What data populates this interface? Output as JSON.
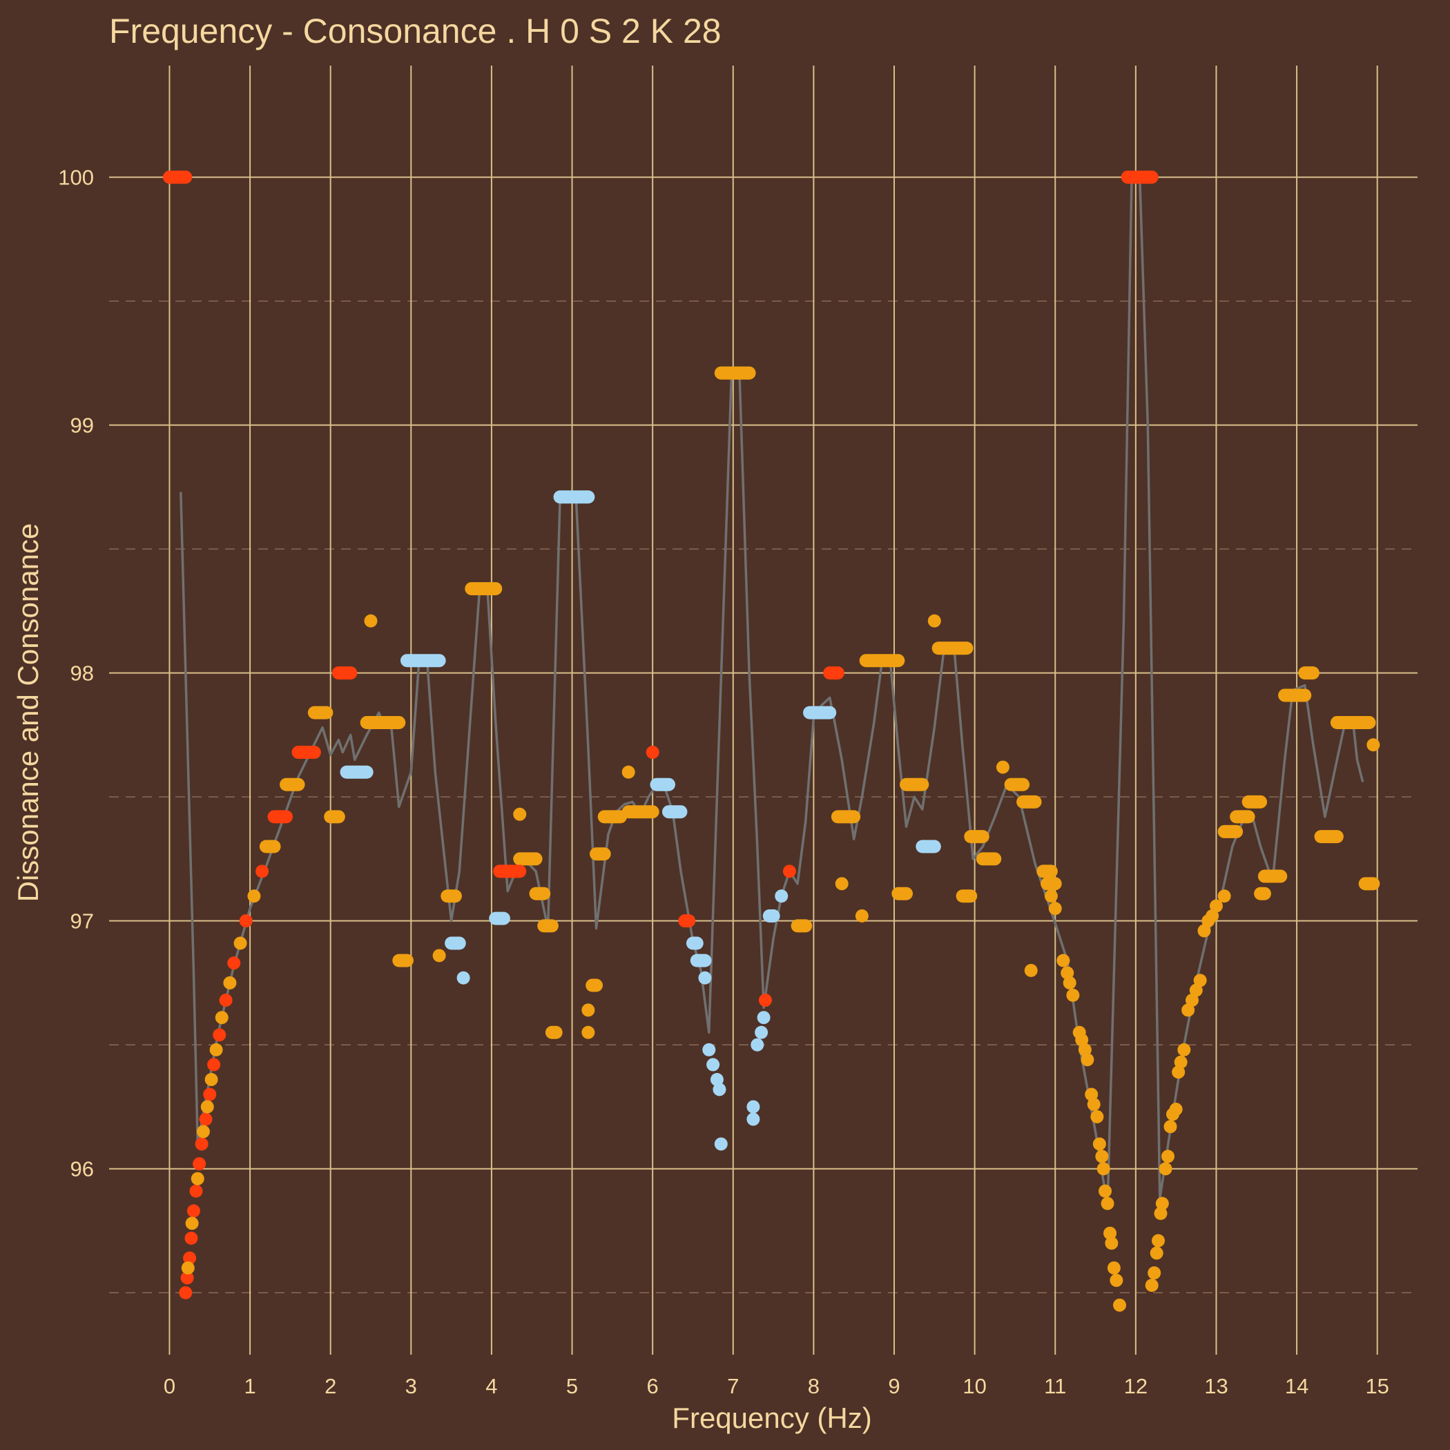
{
  "chart_data": {
    "type": "scatter",
    "title": "Frequency - Consonance . H 0 S 2 K 28",
    "xlabel": "Frequency (Hz)",
    "ylabel": "Dissonance and Consonance",
    "xlim": [
      -0.75,
      15.5
    ],
    "ylim": [
      95.25,
      100.45
    ],
    "x_ticks": [
      0,
      1,
      2,
      3,
      4,
      5,
      6,
      7,
      8,
      9,
      10,
      11,
      12,
      13,
      14,
      15
    ],
    "x_tick_labels": [
      "0",
      "1",
      "2",
      "3",
      "4",
      "5",
      "6",
      "7",
      "8",
      "9",
      "10",
      "11",
      "12",
      "13",
      "14",
      "15"
    ],
    "y_ticks": [
      96,
      97,
      98,
      99,
      100
    ],
    "y_tick_labels": [
      "96",
      "97",
      "98",
      "99",
      "100"
    ],
    "y_minor_ticks": [
      95.5,
      96.5,
      97.5,
      98.5,
      99.5
    ],
    "grid": true,
    "colors": {
      "red": "#ff3d0d",
      "orange": "#f0a011",
      "blue": "#a5d7f5",
      "trend": "#707070",
      "background": "#4e3227",
      "text": "#f5d8a0"
    },
    "segments": [
      {
        "x1": 0,
        "x2": 0.2,
        "y": 100,
        "color": "red"
      },
      {
        "x1": 11.9,
        "x2": 12.2,
        "y": 100,
        "color": "red"
      },
      {
        "x1": 6.85,
        "x2": 7.2,
        "y": 99.21,
        "color": "orange"
      },
      {
        "x1": 4.85,
        "x2": 5.2,
        "y": 98.71,
        "color": "blue"
      },
      {
        "x1": 3.75,
        "x2": 4.05,
        "y": 98.34,
        "color": "orange"
      },
      {
        "x1": 2.95,
        "x2": 3.35,
        "y": 98.05,
        "color": "blue"
      },
      {
        "x1": 8.65,
        "x2": 9.05,
        "y": 98.05,
        "color": "orange"
      },
      {
        "x1": 9.55,
        "x2": 9.9,
        "y": 98.1,
        "color": "orange"
      },
      {
        "x1": 2.1,
        "x2": 2.25,
        "y": 98,
        "color": "red"
      },
      {
        "x1": 8.2,
        "x2": 8.3,
        "y": 98,
        "color": "red"
      },
      {
        "x1": 14.1,
        "x2": 14.2,
        "y": 98,
        "color": "orange"
      },
      {
        "x1": 13.85,
        "x2": 14.1,
        "y": 97.91,
        "color": "orange"
      },
      {
        "x1": 1.8,
        "x2": 1.95,
        "y": 97.84,
        "color": "orange"
      },
      {
        "x1": 7.95,
        "x2": 8.2,
        "y": 97.84,
        "color": "blue"
      },
      {
        "x1": 2.45,
        "x2": 2.85,
        "y": 97.8,
        "color": "orange"
      },
      {
        "x1": 14.5,
        "x2": 14.9,
        "y": 97.8,
        "color": "orange"
      },
      {
        "x1": 1.6,
        "x2": 1.8,
        "y": 97.68,
        "color": "red"
      },
      {
        "x1": 2.2,
        "x2": 2.45,
        "y": 97.6,
        "color": "blue"
      },
      {
        "x1": 1.45,
        "x2": 1.6,
        "y": 97.55,
        "color": "orange"
      },
      {
        "x1": 6.05,
        "x2": 6.2,
        "y": 97.55,
        "color": "blue"
      },
      {
        "x1": 9.15,
        "x2": 9.35,
        "y": 97.55,
        "color": "orange"
      },
      {
        "x1": 10.45,
        "x2": 10.6,
        "y": 97.55,
        "color": "orange"
      },
      {
        "x1": 10.6,
        "x2": 10.75,
        "y": 97.48,
        "color": "orange"
      },
      {
        "x1": 13.4,
        "x2": 13.55,
        "y": 97.48,
        "color": "orange"
      },
      {
        "x1": 5.7,
        "x2": 6.0,
        "y": 97.44,
        "color": "orange"
      },
      {
        "x1": 6.2,
        "x2": 6.35,
        "y": 97.44,
        "color": "blue"
      },
      {
        "x1": 1.3,
        "x2": 1.45,
        "y": 97.42,
        "color": "red"
      },
      {
        "x1": 2.0,
        "x2": 2.1,
        "y": 97.42,
        "color": "orange"
      },
      {
        "x1": 5.4,
        "x2": 5.6,
        "y": 97.42,
        "color": "orange"
      },
      {
        "x1": 8.3,
        "x2": 8.5,
        "y": 97.42,
        "color": "orange"
      },
      {
        "x1": 13.25,
        "x2": 13.4,
        "y": 97.42,
        "color": "orange"
      },
      {
        "x1": 13.1,
        "x2": 13.25,
        "y": 97.36,
        "color": "orange"
      },
      {
        "x1": 9.95,
        "x2": 10.1,
        "y": 97.34,
        "color": "orange"
      },
      {
        "x1": 14.3,
        "x2": 14.5,
        "y": 97.34,
        "color": "orange"
      },
      {
        "x1": 1.2,
        "x2": 1.3,
        "y": 97.3,
        "color": "orange"
      },
      {
        "x1": 9.35,
        "x2": 9.5,
        "y": 97.3,
        "color": "blue"
      },
      {
        "x1": 5.3,
        "x2": 5.4,
        "y": 97.27,
        "color": "orange"
      },
      {
        "x1": 4.35,
        "x2": 4.55,
        "y": 97.25,
        "color": "orange"
      },
      {
        "x1": 10.1,
        "x2": 10.25,
        "y": 97.25,
        "color": "orange"
      },
      {
        "x1": 4.1,
        "x2": 4.35,
        "y": 97.2,
        "color": "red"
      },
      {
        "x1": 10.85,
        "x2": 10.95,
        "y": 97.2,
        "color": "orange"
      },
      {
        "x1": 13.6,
        "x2": 13.8,
        "y": 97.18,
        "color": "orange"
      },
      {
        "x1": 10.9,
        "x2": 11.0,
        "y": 97.15,
        "color": "orange"
      },
      {
        "x1": 14.85,
        "x2": 14.95,
        "y": 97.15,
        "color": "orange"
      },
      {
        "x1": 3.45,
        "x2": 3.55,
        "y": 97.1,
        "color": "orange"
      },
      {
        "x1": 4.55,
        "x2": 4.65,
        "y": 97.11,
        "color": "orange"
      },
      {
        "x1": 9.05,
        "x2": 9.15,
        "y": 97.11,
        "color": "orange"
      },
      {
        "x1": 9.85,
        "x2": 9.95,
        "y": 97.1,
        "color": "orange"
      },
      {
        "x1": 13.55,
        "x2": 13.6,
        "y": 97.11,
        "color": "orange"
      },
      {
        "x1": 7.45,
        "x2": 7.5,
        "y": 97.02,
        "color": "blue"
      },
      {
        "x1": 4.05,
        "x2": 4.15,
        "y": 97.01,
        "color": "blue"
      },
      {
        "x1": 6.4,
        "x2": 6.45,
        "y": 97.0,
        "color": "red"
      },
      {
        "x1": 4.65,
        "x2": 4.75,
        "y": 96.98,
        "color": "orange"
      },
      {
        "x1": 7.8,
        "x2": 7.9,
        "y": 96.98,
        "color": "orange"
      },
      {
        "x1": 3.5,
        "x2": 3.6,
        "y": 96.91,
        "color": "blue"
      },
      {
        "x1": 6.5,
        "x2": 6.55,
        "y": 96.91,
        "color": "blue"
      },
      {
        "x1": 2.85,
        "x2": 2.95,
        "y": 96.84,
        "color": "orange"
      },
      {
        "x1": 6.55,
        "x2": 6.65,
        "y": 96.84,
        "color": "blue"
      },
      {
        "x1": 5.25,
        "x2": 5.3,
        "y": 96.74,
        "color": "orange"
      },
      {
        "x1": 4.75,
        "x2": 4.8,
        "y": 96.55,
        "color": "orange"
      }
    ],
    "series": [
      {
        "color": "red",
        "points": [
          [
            0.2,
            95.5
          ],
          [
            0.22,
            95.56
          ],
          [
            0.25,
            95.64
          ],
          [
            0.27,
            95.72
          ],
          [
            0.3,
            95.83
          ],
          [
            0.33,
            95.91
          ],
          [
            0.37,
            96.02
          ],
          [
            0.4,
            96.1
          ],
          [
            0.45,
            96.2
          ],
          [
            0.5,
            96.3
          ],
          [
            0.55,
            96.42
          ],
          [
            0.62,
            96.54
          ],
          [
            0.7,
            96.68
          ],
          [
            0.8,
            96.83
          ],
          [
            0.95,
            97.0
          ],
          [
            1.15,
            97.2
          ],
          [
            7.4,
            96.68
          ],
          [
            7.7,
            97.2
          ],
          [
            6.0,
            97.68
          ]
        ]
      },
      {
        "color": "orange",
        "points": [
          [
            0.23,
            95.6
          ],
          [
            0.28,
            95.78
          ],
          [
            0.35,
            95.96
          ],
          [
            0.42,
            96.15
          ],
          [
            0.47,
            96.25
          ],
          [
            0.52,
            96.36
          ],
          [
            0.58,
            96.48
          ],
          [
            0.65,
            96.61
          ],
          [
            0.75,
            96.75
          ],
          [
            0.88,
            96.91
          ],
          [
            1.05,
            97.1
          ],
          [
            2.5,
            98.21
          ],
          [
            3.35,
            96.86
          ],
          [
            4.35,
            97.43
          ],
          [
            5.2,
            96.55
          ],
          [
            5.2,
            96.64
          ],
          [
            5.7,
            97.6
          ],
          [
            8.35,
            97.15
          ],
          [
            8.6,
            97.02
          ],
          [
            9.5,
            98.21
          ],
          [
            10.35,
            97.62
          ],
          [
            10.7,
            96.8
          ],
          [
            10.95,
            97.1
          ],
          [
            11.0,
            97.05
          ],
          [
            11.1,
            96.84
          ],
          [
            11.15,
            96.79
          ],
          [
            11.18,
            96.75
          ],
          [
            11.22,
            96.7
          ],
          [
            11.3,
            96.55
          ],
          [
            11.33,
            96.52
          ],
          [
            11.37,
            96.48
          ],
          [
            11.4,
            96.44
          ],
          [
            11.45,
            96.3
          ],
          [
            11.48,
            96.26
          ],
          [
            11.52,
            96.21
          ],
          [
            11.55,
            96.1
          ],
          [
            11.58,
            96.05
          ],
          [
            11.6,
            96.0
          ],
          [
            11.62,
            95.91
          ],
          [
            11.65,
            95.86
          ],
          [
            11.68,
            95.74
          ],
          [
            11.7,
            95.7
          ],
          [
            11.73,
            95.6
          ],
          [
            11.76,
            95.55
          ],
          [
            11.8,
            95.45
          ],
          [
            12.2,
            95.53
          ],
          [
            12.23,
            95.58
          ],
          [
            12.26,
            95.66
          ],
          [
            12.28,
            95.71
          ],
          [
            12.31,
            95.82
          ],
          [
            12.33,
            95.86
          ],
          [
            12.37,
            96.0
          ],
          [
            12.4,
            96.05
          ],
          [
            12.43,
            96.17
          ],
          [
            12.46,
            96.22
          ],
          [
            12.5,
            96.24
          ],
          [
            12.53,
            96.39
          ],
          [
            12.56,
            96.43
          ],
          [
            12.6,
            96.48
          ],
          [
            12.65,
            96.64
          ],
          [
            12.7,
            96.68
          ],
          [
            12.75,
            96.72
          ],
          [
            12.8,
            96.76
          ],
          [
            12.85,
            96.96
          ],
          [
            12.9,
            97.0
          ],
          [
            12.95,
            97.02
          ],
          [
            13.0,
            97.06
          ],
          [
            13.1,
            97.1
          ],
          [
            14.95,
            97.71
          ]
        ]
      },
      {
        "color": "blue",
        "points": [
          [
            3.65,
            96.77
          ],
          [
            6.65,
            96.77
          ],
          [
            6.7,
            96.48
          ],
          [
            6.75,
            96.42
          ],
          [
            6.8,
            96.36
          ],
          [
            6.83,
            96.32
          ],
          [
            6.85,
            96.1
          ],
          [
            7.25,
            96.2
          ],
          [
            7.25,
            96.25
          ],
          [
            7.3,
            96.5
          ],
          [
            7.35,
            96.55
          ],
          [
            7.38,
            96.61
          ],
          [
            7.5,
            97.02
          ],
          [
            7.6,
            97.1
          ]
        ]
      }
    ],
    "trend_line": {
      "color": "trend",
      "points": [
        [
          0.14,
          98.73
        ],
        [
          0.3,
          96.8
        ],
        [
          0.35,
          96.1
        ],
        [
          0.6,
          96.54
        ],
        [
          0.8,
          96.82
        ],
        [
          1.0,
          97.05
        ],
        [
          1.2,
          97.22
        ],
        [
          1.4,
          97.4
        ],
        [
          1.6,
          97.58
        ],
        [
          1.75,
          97.68
        ],
        [
          1.9,
          97.78
        ],
        [
          2.0,
          97.67
        ],
        [
          2.1,
          97.73
        ],
        [
          2.15,
          97.68
        ],
        [
          2.25,
          97.75
        ],
        [
          2.3,
          97.65
        ],
        [
          2.45,
          97.75
        ],
        [
          2.6,
          97.84
        ],
        [
          2.65,
          97.8
        ],
        [
          2.75,
          97.8
        ],
        [
          2.85,
          97.46
        ],
        [
          3.0,
          97.6
        ],
        [
          3.1,
          98.05
        ],
        [
          3.2,
          98.05
        ],
        [
          3.3,
          97.6
        ],
        [
          3.5,
          97.0
        ],
        [
          3.6,
          97.2
        ],
        [
          3.85,
          98.33
        ],
        [
          3.95,
          98.33
        ],
        [
          4.05,
          97.8
        ],
        [
          4.2,
          97.12
        ],
        [
          4.3,
          97.2
        ],
        [
          4.4,
          97.25
        ],
        [
          4.55,
          97.2
        ],
        [
          4.7,
          96.97
        ],
        [
          4.85,
          98.7
        ],
        [
          5.05,
          98.7
        ],
        [
          5.2,
          97.7
        ],
        [
          5.3,
          96.97
        ],
        [
          5.45,
          97.35
        ],
        [
          5.55,
          97.44
        ],
        [
          5.65,
          97.47
        ],
        [
          5.75,
          97.48
        ],
        [
          5.85,
          97.43
        ],
        [
          5.95,
          97.5
        ],
        [
          6.05,
          97.55
        ],
        [
          6.15,
          97.54
        ],
        [
          6.25,
          97.44
        ],
        [
          6.35,
          97.2
        ],
        [
          6.5,
          96.92
        ],
        [
          6.6,
          96.8
        ],
        [
          6.7,
          96.55
        ],
        [
          6.8,
          97.5
        ],
        [
          6.98,
          99.2
        ],
        [
          7.08,
          99.2
        ],
        [
          7.2,
          98.0
        ],
        [
          7.3,
          97.3
        ],
        [
          7.38,
          96.65
        ],
        [
          7.5,
          96.93
        ],
        [
          7.6,
          97.1
        ],
        [
          7.7,
          97.2
        ],
        [
          7.8,
          97.15
        ],
        [
          7.9,
          97.4
        ],
        [
          8.0,
          97.82
        ],
        [
          8.1,
          97.87
        ],
        [
          8.2,
          97.9
        ],
        [
          8.25,
          97.82
        ],
        [
          8.35,
          97.65
        ],
        [
          8.5,
          97.33
        ],
        [
          8.6,
          97.5
        ],
        [
          8.75,
          97.8
        ],
        [
          8.85,
          98.05
        ],
        [
          8.95,
          98.05
        ],
        [
          9.05,
          97.7
        ],
        [
          9.15,
          97.38
        ],
        [
          9.25,
          97.5
        ],
        [
          9.35,
          97.45
        ],
        [
          9.5,
          97.78
        ],
        [
          9.62,
          98.1
        ],
        [
          9.75,
          98.08
        ],
        [
          9.85,
          97.7
        ],
        [
          9.98,
          97.25
        ],
        [
          10.1,
          97.3
        ],
        [
          10.25,
          97.42
        ],
        [
          10.4,
          97.55
        ],
        [
          10.55,
          97.5
        ],
        [
          10.75,
          97.23
        ],
        [
          10.95,
          97.04
        ],
        [
          11.15,
          96.84
        ],
        [
          11.3,
          96.5
        ],
        [
          11.5,
          96.15
        ],
        [
          11.65,
          95.85
        ],
        [
          11.85,
          98.2
        ],
        [
          11.95,
          100
        ],
        [
          12.05,
          100
        ],
        [
          12.15,
          99.0
        ],
        [
          12.3,
          95.88
        ],
        [
          12.45,
          96.2
        ],
        [
          12.6,
          96.5
        ],
        [
          12.75,
          96.75
        ],
        [
          12.9,
          96.96
        ],
        [
          13.05,
          97.08
        ],
        [
          13.2,
          97.3
        ],
        [
          13.35,
          97.42
        ],
        [
          13.45,
          97.42
        ],
        [
          13.55,
          97.3
        ],
        [
          13.7,
          97.16
        ],
        [
          13.85,
          97.65
        ],
        [
          13.95,
          97.93
        ],
        [
          14.1,
          97.95
        ],
        [
          14.2,
          97.72
        ],
        [
          14.35,
          97.42
        ],
        [
          14.5,
          97.65
        ],
        [
          14.6,
          97.8
        ],
        [
          14.7,
          97.8
        ],
        [
          14.75,
          97.65
        ],
        [
          14.82,
          97.56
        ]
      ]
    }
  }
}
